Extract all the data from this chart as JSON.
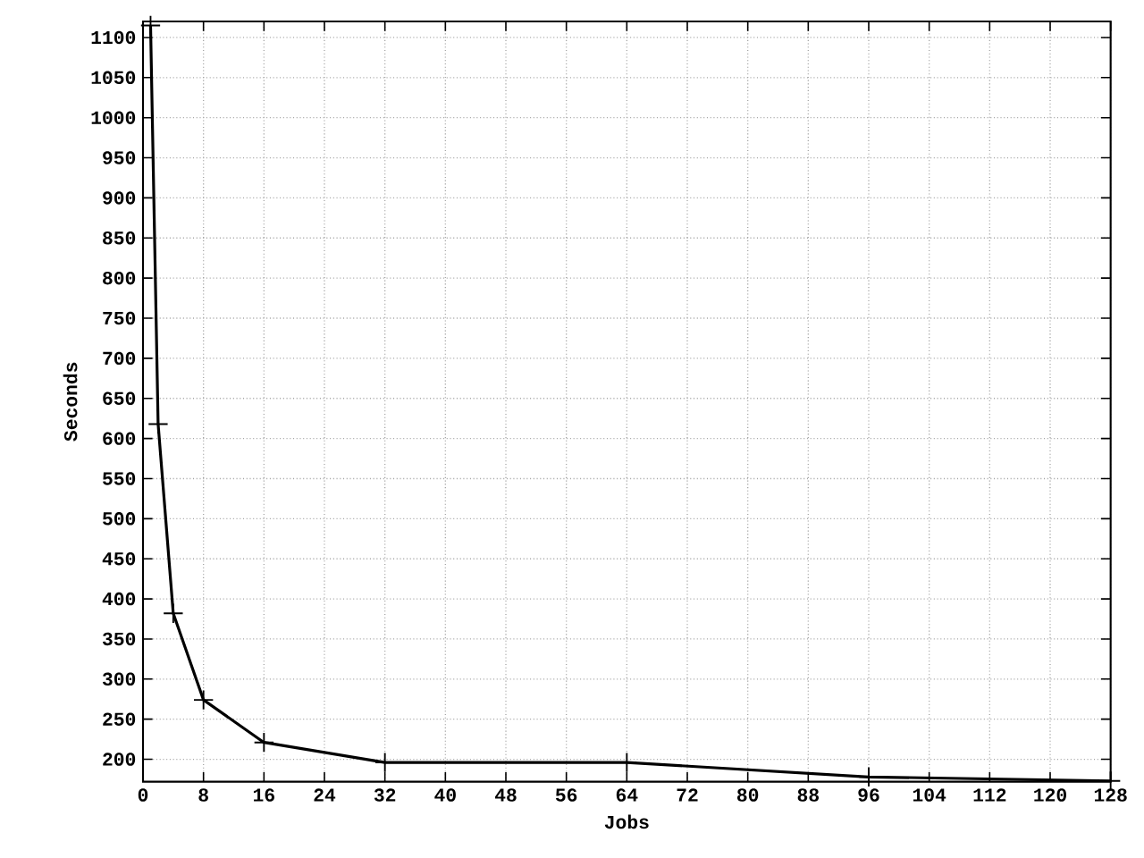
{
  "chart_data": {
    "type": "line",
    "xlabel": "Jobs",
    "ylabel": "Seconds",
    "x": [
      1,
      2,
      4,
      8,
      16,
      32,
      64,
      96,
      128
    ],
    "values": [
      1115,
      618,
      382,
      274,
      221,
      196,
      196,
      178,
      173
    ],
    "color": "#000000",
    "marker": "cross",
    "line_style": "solid",
    "grid": true,
    "xlim": [
      0,
      128
    ],
    "ylim": [
      172,
      1120
    ],
    "xticks": [
      0,
      8,
      16,
      24,
      32,
      40,
      48,
      56,
      64,
      72,
      80,
      88,
      96,
      104,
      112,
      120,
      128
    ],
    "yticks": [
      200,
      250,
      300,
      350,
      400,
      450,
      500,
      550,
      600,
      650,
      700,
      750,
      800,
      850,
      900,
      950,
      1000,
      1050,
      1100
    ]
  }
}
